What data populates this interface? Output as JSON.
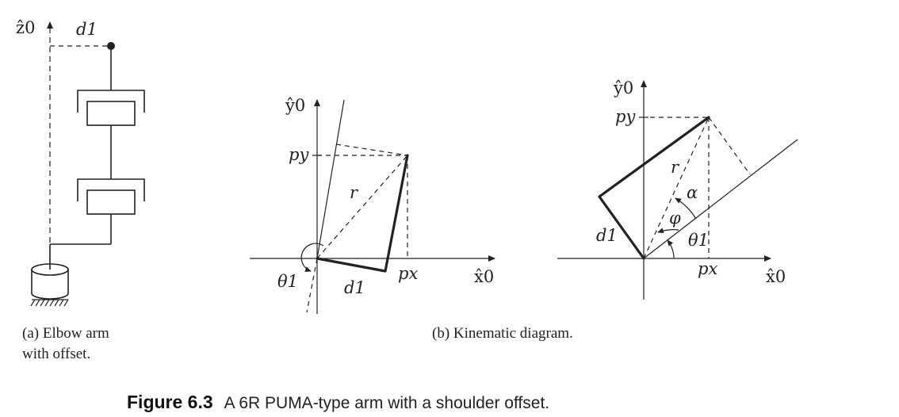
{
  "panel_a": {
    "axis_z0": "ẑ0",
    "d1": "d1",
    "caption_line1": "(a) Elbow arm",
    "caption_line2": "with offset."
  },
  "panel_b_left": {
    "axis_y0": "ŷ0",
    "axis_x0": "x̂0",
    "py": "py",
    "px": "px",
    "r": "r",
    "d1": "d1",
    "theta1": "θ1"
  },
  "panel_b_right": {
    "axis_y0": "ŷ0",
    "axis_x0": "x̂0",
    "py": "py",
    "px": "px",
    "r": "r",
    "d1": "d1",
    "alpha": "α",
    "phi": "φ",
    "theta1": "θ1"
  },
  "caption_b": "(b) Kinematic diagram.",
  "figure_caption": {
    "label": "Figure 6.3",
    "text": "A 6R PUMA-type arm with a shoulder offset."
  }
}
